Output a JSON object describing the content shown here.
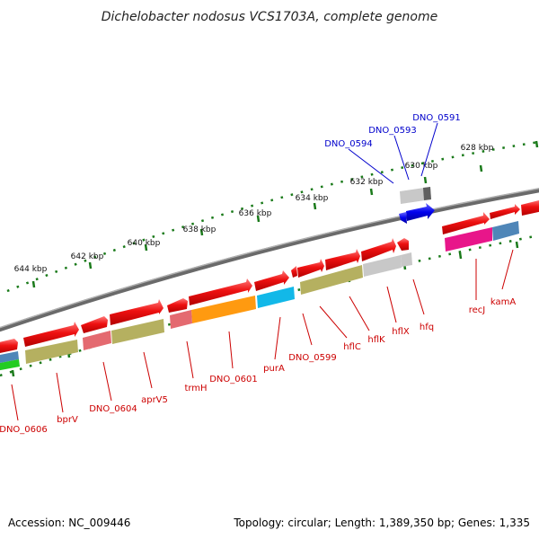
{
  "title": "Dichelobacter nodosus VCS1703A, complete genome",
  "footer": {
    "accession": "Accession: NC_009446",
    "summary": "Topology: circular; Length: 1,389,350 bp; Genes: 1,335"
  },
  "scale_ticks": [
    "628 kbp",
    "630 kbp",
    "632 kbp",
    "634 kbp",
    "636 kbp",
    "638 kbp",
    "640 kbp",
    "642 kbp",
    "644 kbp"
  ],
  "gene_labels_blue": [
    "DNO_0591",
    "DNO_0593",
    "DNO_0594"
  ],
  "gene_labels_red": [
    "kamA",
    "recJ",
    "hfq",
    "hflX",
    "hflK",
    "hflC",
    "DNO_0599",
    "purA",
    "DNO_0601",
    "trmH",
    "aprV5",
    "DNO_0604",
    "bprV",
    "DNO_0606"
  ],
  "colors": {
    "backbone": "#808080",
    "scale_dots": "#1a7a1a",
    "cds_forward": "#ee1111",
    "cds_reverse": "#ee1111",
    "blue_gene": "#0000ee",
    "olive": "#b5b060",
    "orange": "#ff9a10",
    "cyan": "#12b8e8",
    "pink": "#e46a70",
    "grey": "#c0c0c0",
    "magenta": "#e8168a",
    "steel": "#4f86b8",
    "green": "#22cc22"
  }
}
